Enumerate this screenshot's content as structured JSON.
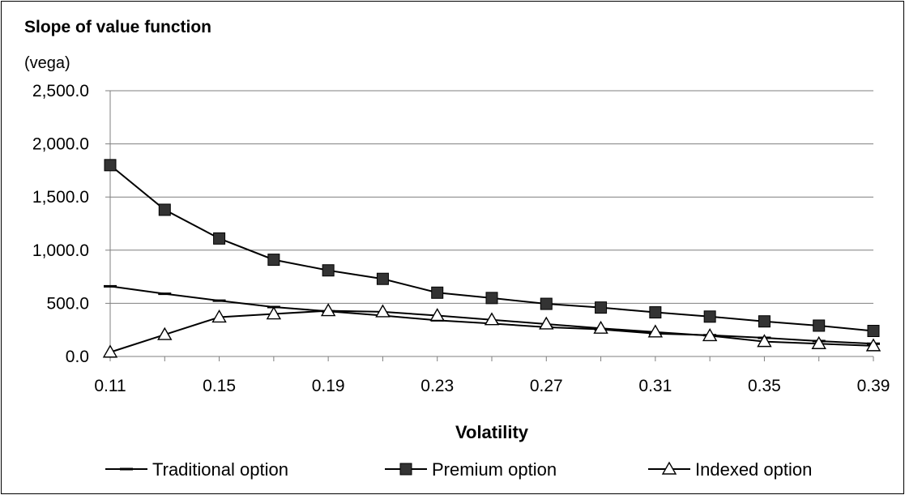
{
  "chart_data": {
    "type": "line",
    "title": "Slope of value function",
    "ylabel": "(vega)",
    "xlabel": "Volatility",
    "x": [
      0.11,
      0.13,
      0.15,
      0.17,
      0.19,
      0.21,
      0.23,
      0.25,
      0.27,
      0.29,
      0.31,
      0.33,
      0.35,
      0.37,
      0.39
    ],
    "x_tick_labels": [
      "0.11",
      "0.15",
      "0.19",
      "0.23",
      "0.27",
      "0.31",
      "0.35",
      "0.39"
    ],
    "x_tick_values": [
      0.11,
      0.15,
      0.19,
      0.23,
      0.27,
      0.31,
      0.35,
      0.39
    ],
    "xlim": [
      0.11,
      0.39
    ],
    "ylim": [
      0,
      2500
    ],
    "y_ticks": [
      0,
      500,
      1000,
      1500,
      2000,
      2500
    ],
    "y_tick_labels": [
      "0.0",
      "500.0",
      "1,000.0",
      "1,500.0",
      "2,000.0",
      "2,500.0"
    ],
    "grid": "horizontal",
    "legend_position": "bottom",
    "series": [
      {
        "name": "Traditional option",
        "marker": "dash",
        "color": "#000000",
        "values": [
          660,
          590,
          525,
          465,
          425,
          385,
          340,
          310,
          275,
          255,
          215,
          200,
          175,
          145,
          120
        ]
      },
      {
        "name": "Premium option",
        "marker": "square",
        "color": "#000000",
        "values": [
          1800,
          1380,
          1110,
          910,
          810,
          730,
          600,
          550,
          495,
          460,
          415,
          375,
          330,
          290,
          240
        ]
      },
      {
        "name": "Indexed option",
        "marker": "triangle",
        "color": "#000000",
        "values": [
          40,
          205,
          370,
          400,
          430,
          420,
          385,
          345,
          305,
          265,
          230,
          195,
          140,
          120,
          100
        ]
      }
    ]
  }
}
